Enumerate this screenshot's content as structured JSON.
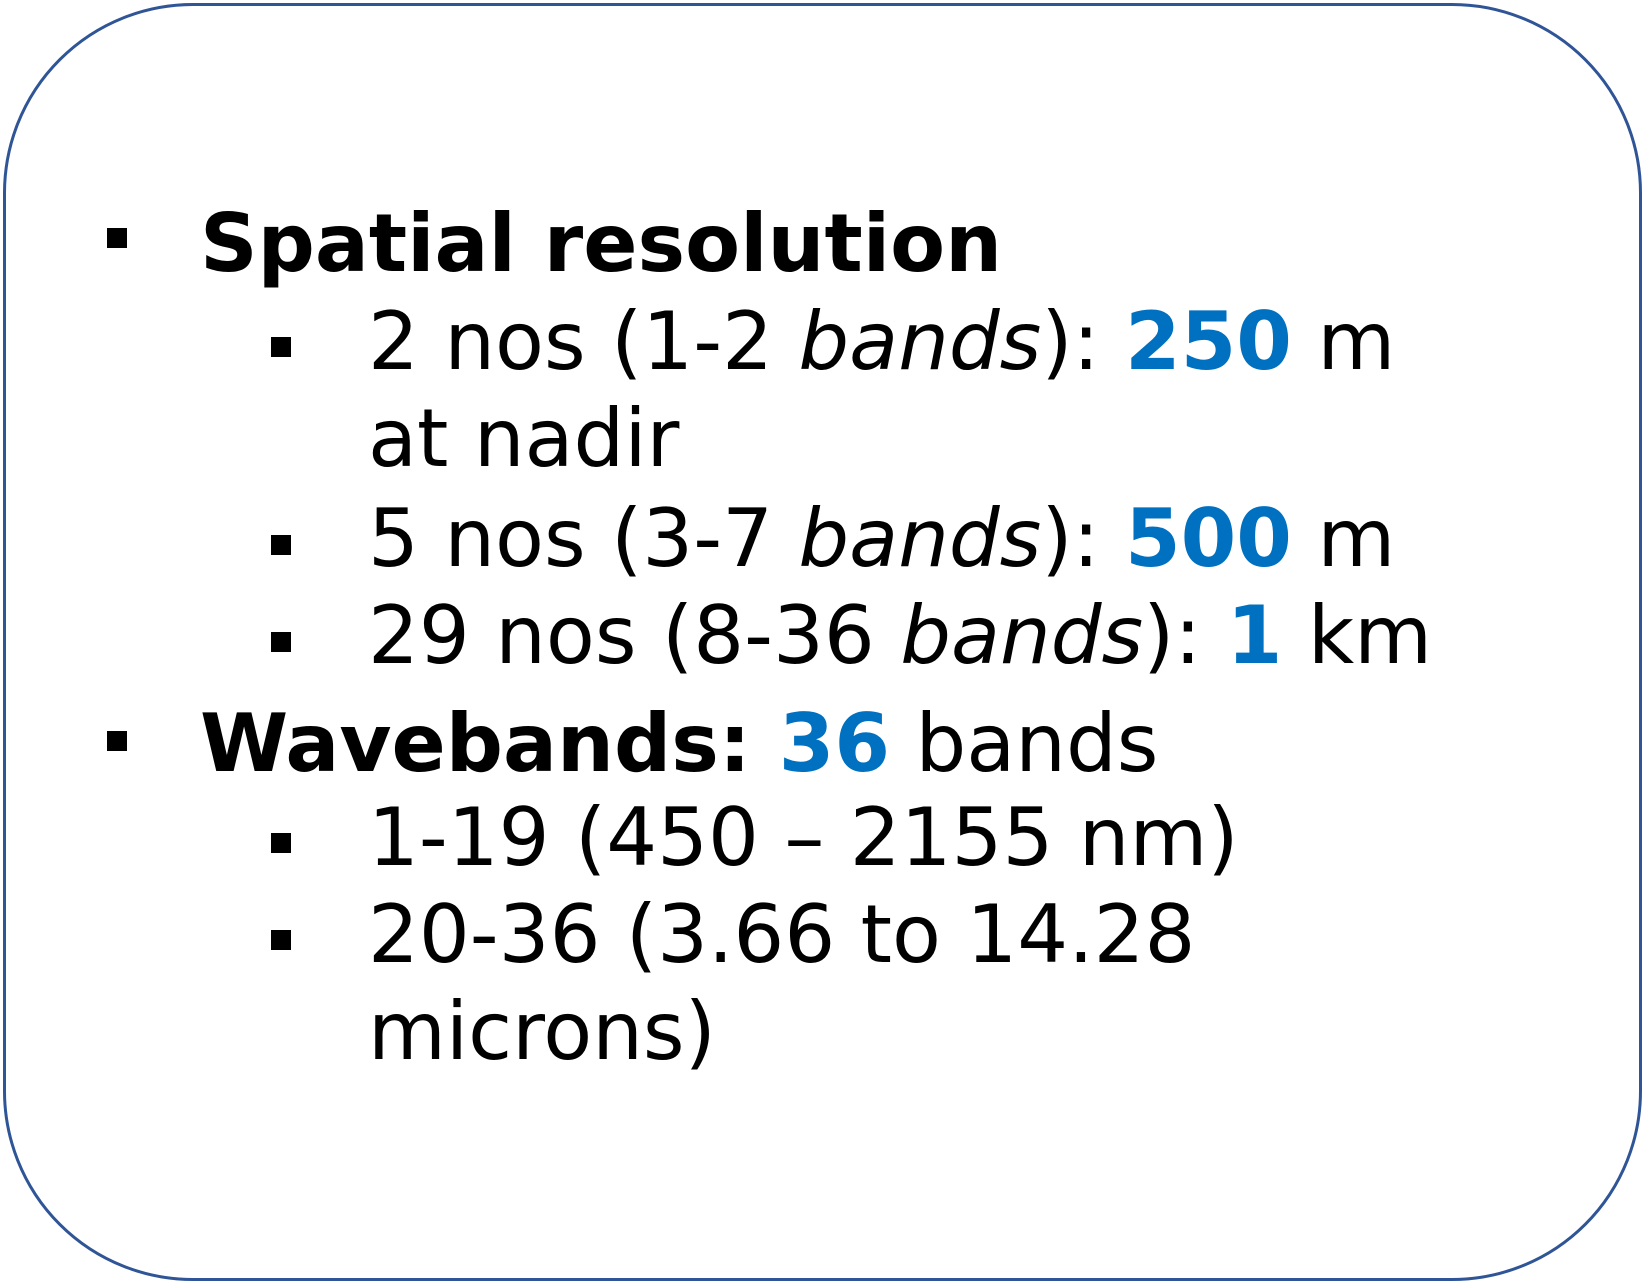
{
  "accent_color": "#0070c0",
  "border_color": "#2f5597",
  "bullets": [
    {
      "heading": "Spatial resolution"
    },
    {
      "line1_pre": "2 nos (1-2 ",
      "line1_italic": "bands",
      "line1_mid": "): ",
      "line1_value": "250",
      "line1_unit": " m",
      "line2": "at nadir"
    },
    {
      "pre": "5 nos (3-7 ",
      "italic": "bands",
      "mid": "): ",
      "value": "500",
      "unit": " m"
    },
    {
      "pre": "29 nos (8-36 ",
      "italic": "bands",
      "mid": "): ",
      "value": "1",
      "unit": " km"
    },
    {
      "heading": "Wavebands: ",
      "value": "36",
      "unit": " bands"
    },
    {
      "text": "1-19 (450 – 2155 nm)"
    },
    {
      "line1": "20-36 (3.66 to 14.28",
      "line2": "microns)"
    }
  ]
}
